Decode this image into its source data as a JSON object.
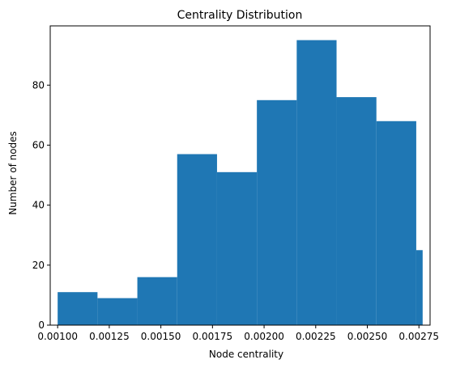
{
  "chart_data": {
    "type": "bar",
    "title": "Centrality Distribution",
    "xlabel": "Node centrality",
    "ylabel": "Number of nodes",
    "bin_edges": [
      0.001,
      0.001193,
      0.001386,
      0.001579,
      0.001772,
      0.001965,
      0.002158,
      0.002351,
      0.002544,
      0.002737,
      0.002768
    ],
    "values": [
      11,
      9,
      16,
      57,
      51,
      75,
      95,
      76,
      68,
      25
    ],
    "xlim": [
      0.000964,
      0.002804
    ],
    "ylim": [
      0,
      99.75
    ],
    "xticks": [
      0.001,
      0.00125,
      0.0015,
      0.00175,
      0.002,
      0.00225,
      0.0025,
      0.00275
    ],
    "xtick_labels": [
      "0.00100",
      "0.00125",
      "0.00150",
      "0.00175",
      "0.00200",
      "0.00225",
      "0.00250",
      "0.00275"
    ],
    "yticks": [
      0,
      20,
      40,
      60,
      80
    ],
    "ytick_labels": [
      "0",
      "20",
      "40",
      "60",
      "80"
    ],
    "bar_color": "#1f77b4",
    "grid": false,
    "legend": null
  }
}
